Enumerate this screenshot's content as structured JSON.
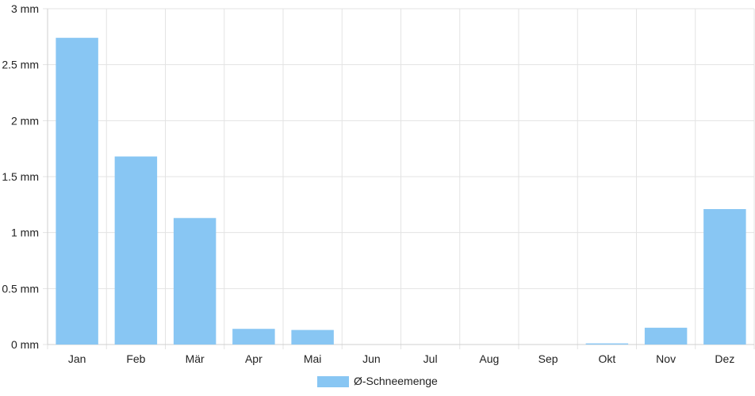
{
  "chart_data": {
    "type": "bar",
    "categories": [
      "Jan",
      "Feb",
      "Mär",
      "Apr",
      "Mai",
      "Jun",
      "Jul",
      "Aug",
      "Sep",
      "Okt",
      "Nov",
      "Dez"
    ],
    "series": [
      {
        "name": "Ø-Schneemenge",
        "values": [
          2.74,
          1.68,
          1.13,
          0.14,
          0.13,
          0,
          0,
          0,
          0,
          0.01,
          0.15,
          1.21
        ],
        "color": "#88c6f3"
      }
    ],
    "y_ticks": [
      "0 mm",
      "0.5 mm",
      "1 mm",
      "1.5 mm",
      "2 mm",
      "2.5 mm",
      "3 mm"
    ],
    "ylim": [
      0,
      3
    ],
    "grid": true,
    "legend_position": "bottom-center"
  }
}
